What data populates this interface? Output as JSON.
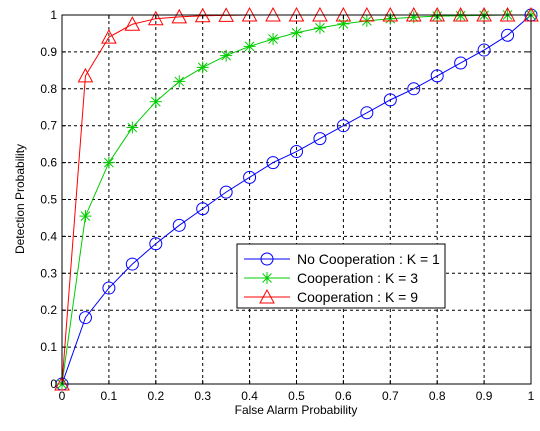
{
  "chart_data": {
    "type": "line",
    "title": "",
    "xlabel": "False Alarm Probability",
    "ylabel": "Detection Probability",
    "xlim": [
      0,
      1
    ],
    "ylim": [
      0,
      1
    ],
    "xticks": [
      "0",
      "0.1",
      "0.2",
      "0.3",
      "0.4",
      "0.5",
      "0.6",
      "0.7",
      "0.8",
      "0.9",
      "1"
    ],
    "yticks": [
      "0",
      "0.1",
      "0.2",
      "0.3",
      "0.4",
      "0.5",
      "0.6",
      "0.7",
      "0.8",
      "0.9",
      "1"
    ],
    "grid": true,
    "legend_position": "center-right",
    "x": [
      0,
      0.05,
      0.1,
      0.15,
      0.2,
      0.25,
      0.3,
      0.35,
      0.4,
      0.45,
      0.5,
      0.55,
      0.6,
      0.65,
      0.7,
      0.75,
      0.8,
      0.85,
      0.9,
      0.95,
      1.0
    ],
    "series": [
      {
        "name": "No Cooperation : K = 1",
        "color": "#0000ff",
        "marker": "circle",
        "values": [
          0.0,
          0.18,
          0.26,
          0.325,
          0.38,
          0.43,
          0.475,
          0.52,
          0.56,
          0.6,
          0.63,
          0.665,
          0.7,
          0.735,
          0.77,
          0.8,
          0.835,
          0.87,
          0.905,
          0.945,
          1.0
        ]
      },
      {
        "name": "Cooperation : K = 3",
        "color": "#00cc00",
        "marker": "star",
        "values": [
          0.0,
          0.455,
          0.6,
          0.695,
          0.765,
          0.82,
          0.858,
          0.89,
          0.915,
          0.935,
          0.952,
          0.965,
          0.976,
          0.984,
          0.99,
          0.994,
          0.997,
          0.998,
          0.999,
          1.0,
          1.0
        ]
      },
      {
        "name": "Cooperation : K = 9",
        "color": "#ff0000",
        "marker": "triangle",
        "values": [
          0.0,
          0.835,
          0.94,
          0.975,
          0.99,
          0.995,
          0.998,
          0.999,
          1.0,
          1.0,
          1.0,
          1.0,
          1.0,
          1.0,
          1.0,
          1.0,
          1.0,
          1.0,
          1.0,
          1.0,
          1.0
        ]
      }
    ]
  }
}
